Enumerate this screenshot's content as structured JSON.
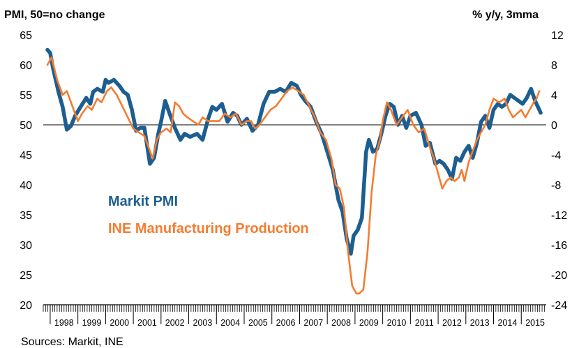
{
  "chart_data": {
    "type": "line",
    "left_axis_title": "PMI, 50=no change",
    "right_axis_title": "% y/y, 3mma",
    "source": "Sources: Markit, INE",
    "ylim_left": [
      20,
      65
    ],
    "ylim_right": [
      -24,
      12
    ],
    "yticks_left": [
      "65",
      "60",
      "55",
      "50",
      "45",
      "40",
      "35",
      "30",
      "25",
      "20"
    ],
    "yticks_right": [
      "12",
      "8",
      "4",
      "0",
      "-4",
      "-8",
      "-12",
      "-16",
      "-20",
      "-24"
    ],
    "years": [
      "1998",
      "1999",
      "2000",
      "2001",
      "2002",
      "2003",
      "2004",
      "2005",
      "2006",
      "2007",
      "2008",
      "2009",
      "2010",
      "2011",
      "2012",
      "2013",
      "2014",
      "2015"
    ],
    "x_start": 1997.75,
    "x_end": 2015.9,
    "series": [
      {
        "name": "Markit PMI",
        "axis": "left",
        "color": "#1d5e91",
        "x": [
          1997.9,
          1998.0,
          1998.1,
          1998.3,
          1998.45,
          1998.6,
          1998.75,
          1998.9,
          1999.1,
          1999.3,
          1999.45,
          1999.55,
          1999.7,
          1999.9,
          2000.0,
          2000.1,
          2000.3,
          2000.5,
          2000.65,
          2000.8,
          2000.95,
          2001.1,
          2001.25,
          2001.4,
          2001.6,
          2001.75,
          2001.9,
          2002.0,
          2002.15,
          2002.3,
          2002.5,
          2002.7,
          2002.85,
          2003.05,
          2003.3,
          2003.5,
          2003.7,
          2003.85,
          2004.0,
          2004.2,
          2004.4,
          2004.6,
          2004.75,
          2004.9,
          2005.1,
          2005.3,
          2005.5,
          2005.7,
          2005.9,
          2006.1,
          2006.3,
          2006.5,
          2006.7,
          2006.9,
          2007.05,
          2007.2,
          2007.4,
          2007.6,
          2007.8,
          2008.0,
          2008.2,
          2008.4,
          2008.55,
          2008.7,
          2008.85,
          2008.95,
          2009.1,
          2009.25,
          2009.4,
          2009.5,
          2009.65,
          2009.8,
          2009.95,
          2010.1,
          2010.25,
          2010.4,
          2010.55,
          2010.7,
          2010.85,
          2011.0,
          2011.2,
          2011.4,
          2011.55,
          2011.7,
          2011.9,
          2012.05,
          2012.2,
          2012.35,
          2012.5,
          2012.65,
          2012.8,
          2012.95,
          2013.1,
          2013.25,
          2013.4,
          2013.55,
          2013.7,
          2013.85,
          2014.0,
          2014.15,
          2014.3,
          2014.45,
          2014.6,
          2014.75,
          2014.9,
          2015.05,
          2015.2,
          2015.35,
          2015.5,
          2015.6,
          2015.7
        ],
        "values": [
          62.5,
          62.0,
          59.5,
          55.5,
          53.0,
          49.2,
          49.8,
          51.5,
          53.0,
          54.5,
          53.5,
          55.5,
          56.0,
          55.5,
          57.5,
          57.0,
          57.5,
          56.5,
          55.5,
          55.0,
          52.5,
          49.0,
          49.5,
          49.5,
          43.5,
          44.5,
          48.5,
          50.5,
          54.0,
          52.0,
          49.5,
          47.5,
          48.5,
          48.0,
          48.5,
          47.5,
          51.0,
          53.0,
          52.5,
          53.5,
          50.5,
          52.0,
          51.5,
          50.0,
          51.0,
          49.0,
          50.0,
          53.5,
          55.5,
          55.5,
          56.0,
          55.5,
          57.0,
          56.5,
          55.0,
          54.0,
          53.0,
          50.5,
          48.5,
          45.5,
          42.5,
          37.5,
          35.5,
          31.0,
          28.5,
          31.5,
          32.5,
          34.5,
          45.5,
          47.5,
          45.5,
          46.0,
          48.5,
          51.5,
          53.5,
          53.0,
          50.0,
          51.5,
          49.5,
          51.5,
          52.0,
          50.0,
          46.5,
          47.0,
          43.5,
          44.0,
          43.5,
          42.5,
          41.0,
          44.5,
          44.0,
          45.5,
          46.5,
          44.5,
          47.0,
          50.5,
          51.5,
          49.5,
          52.5,
          53.5,
          53.0,
          53.5,
          55.0,
          54.5,
          54.0,
          53.5,
          54.5,
          56.0,
          54.0,
          53.0,
          52.0
        ]
      },
      {
        "name": "INE Manufacturing Production",
        "axis": "right",
        "color": "#f47c30",
        "x": [
          1997.9,
          1998.05,
          1998.25,
          1998.45,
          1998.6,
          1998.85,
          1999.0,
          1999.15,
          1999.35,
          1999.5,
          1999.7,
          1999.85,
          2000.05,
          2000.2,
          2000.4,
          2000.6,
          2000.8,
          2001.0,
          2001.2,
          2001.4,
          2001.55,
          2001.7,
          2001.85,
          2002.0,
          2002.2,
          2002.35,
          2002.5,
          2002.65,
          2002.8,
          2002.95,
          2003.15,
          2003.35,
          2003.5,
          2003.7,
          2003.9,
          2004.1,
          2004.3,
          2004.5,
          2004.7,
          2004.9,
          2005.1,
          2005.25,
          2005.4,
          2005.55,
          2005.75,
          2005.95,
          2006.15,
          2006.35,
          2006.55,
          2006.75,
          2006.95,
          2007.15,
          2007.35,
          2007.55,
          2007.75,
          2007.95,
          2008.15,
          2008.3,
          2008.45,
          2008.6,
          2008.75,
          2008.9,
          2009.05,
          2009.15,
          2009.3,
          2009.45,
          2009.6,
          2009.75,
          2009.9,
          2010.0,
          2010.15,
          2010.3,
          2010.5,
          2010.7,
          2010.9,
          2011.1,
          2011.3,
          2011.5,
          2011.7,
          2011.85,
          2012.0,
          2012.15,
          2012.3,
          2012.45,
          2012.6,
          2012.75,
          2012.85,
          2012.95,
          2013.1,
          2013.25,
          2013.4,
          2013.55,
          2013.7,
          2013.85,
          2014.0,
          2014.2,
          2014.4,
          2014.55,
          2014.7,
          2014.85,
          2015.0,
          2015.15,
          2015.3,
          2015.45,
          2015.55,
          2015.65
        ],
        "values": [
          8.0,
          9.0,
          6.0,
          4.0,
          4.5,
          2.0,
          0.5,
          1.5,
          2.5,
          2.0,
          3.5,
          3.0,
          4.5,
          5.0,
          4.0,
          2.5,
          1.0,
          -0.5,
          -1.0,
          -1.5,
          -3.0,
          -4.5,
          -2.0,
          -1.0,
          -0.5,
          -1.0,
          3.0,
          2.5,
          1.5,
          1.0,
          0.5,
          0.0,
          1.0,
          0.5,
          0.5,
          0.5,
          1.5,
          1.0,
          1.5,
          0.0,
          0.5,
          0.5,
          -0.5,
          0.0,
          1.0,
          2.0,
          2.5,
          3.5,
          4.5,
          5.0,
          4.5,
          4.0,
          2.5,
          1.0,
          -1.0,
          -2.0,
          -4.5,
          -8.0,
          -8.5,
          -11.0,
          -17.0,
          -21.5,
          -22.5,
          -22.5,
          -22.0,
          -17.0,
          -9.0,
          -4.0,
          -2.0,
          0.5,
          3.0,
          2.0,
          0.0,
          1.0,
          2.0,
          0.0,
          -1.0,
          -0.5,
          -3.0,
          -4.5,
          -6.5,
          -8.5,
          -7.5,
          -7.0,
          -7.5,
          -7.0,
          -6.0,
          -7.5,
          -5.0,
          -3.5,
          -2.0,
          -1.0,
          0.0,
          2.0,
          3.5,
          3.0,
          3.5,
          2.0,
          1.0,
          1.5,
          2.0,
          1.0,
          2.0,
          3.0,
          3.5,
          4.5
        ]
      }
    ],
    "legend": [
      {
        "label": "Markit PMI",
        "color": "#1d5e91"
      },
      {
        "label": "INE Manufacturing Production",
        "color": "#f47c30"
      }
    ]
  }
}
